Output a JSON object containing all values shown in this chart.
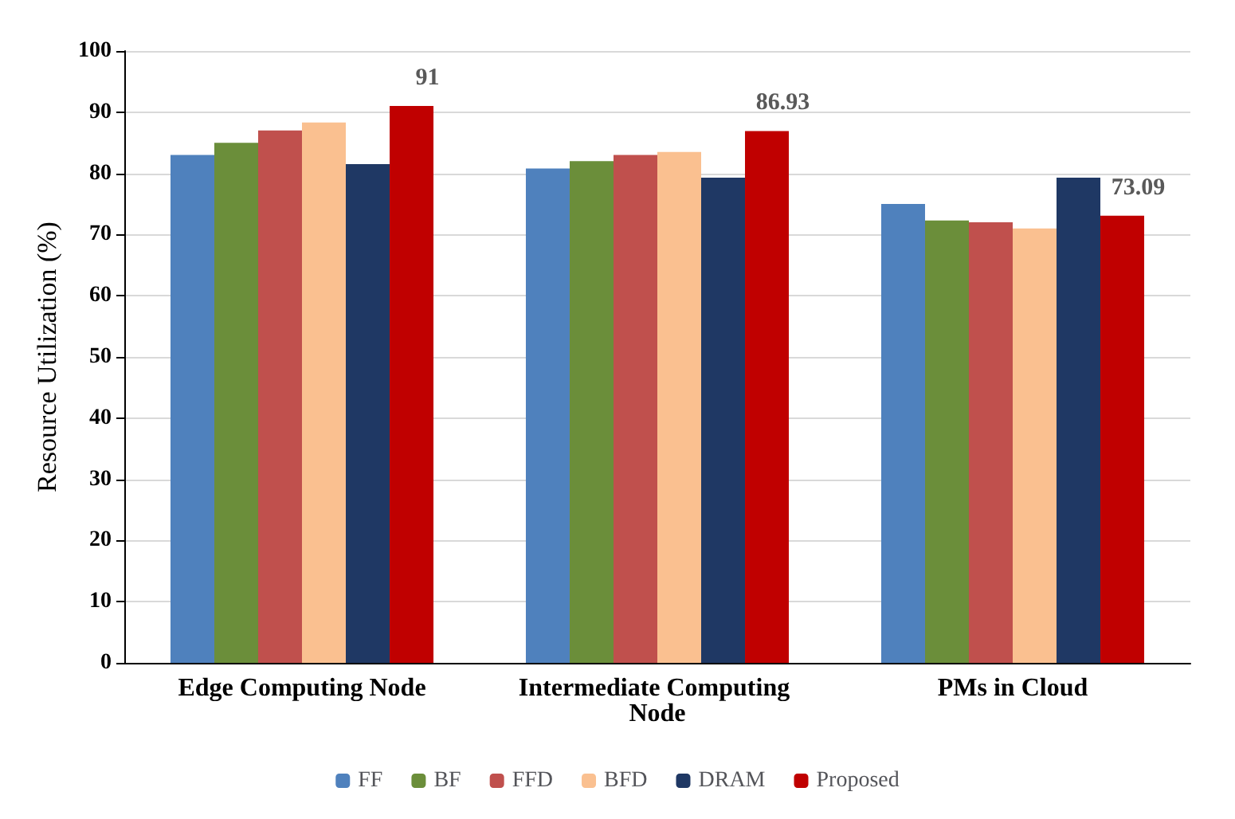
{
  "chart_data": {
    "type": "bar",
    "ylabel": "Resource Utilization (%)",
    "categories": [
      "Edge Computing Node",
      "Intermediate Computing Node",
      "PMs in Cloud"
    ],
    "series": [
      {
        "name": "FF",
        "color": "#4f81bd",
        "values": [
          83,
          80.8,
          75
        ]
      },
      {
        "name": "BF",
        "color": "#6b8e3a",
        "values": [
          85,
          82,
          72.3
        ]
      },
      {
        "name": "FFD",
        "color": "#c0504d",
        "values": [
          87,
          83,
          72
        ]
      },
      {
        "name": "BFD",
        "color": "#fac090",
        "values": [
          88.3,
          83.5,
          71
        ]
      },
      {
        "name": "DRAM",
        "color": "#1f3864",
        "values": [
          81.5,
          79.3,
          79.3
        ]
      },
      {
        "name": "Proposed",
        "color": "#c00000",
        "values": [
          91,
          86.93,
          73.09
        ],
        "value_labels": [
          "91",
          "86.93",
          "73.09"
        ]
      }
    ],
    "ylim": [
      0,
      100
    ],
    "yticks": [
      0,
      10,
      20,
      30,
      40,
      50,
      60,
      70,
      80,
      90,
      100
    ],
    "grid": "y",
    "legend": "bottom"
  }
}
